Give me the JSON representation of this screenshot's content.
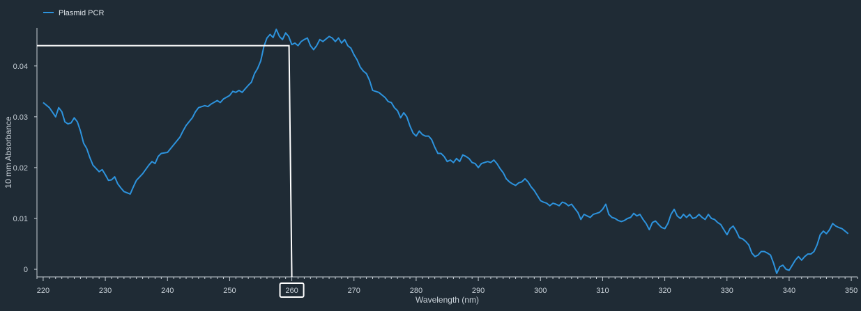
{
  "chart_data": {
    "type": "line",
    "xlabel": "Wavelength (nm)",
    "ylabel": "10 mm Absorbance",
    "xlim": [
      219,
      351
    ],
    "ylim": [
      -0.0015,
      0.0475
    ],
    "x_ticks": [
      220,
      230,
      240,
      250,
      260,
      270,
      280,
      290,
      300,
      310,
      320,
      330,
      340,
      350
    ],
    "y_ticks": [
      {
        "value": 0,
        "label": "0"
      },
      {
        "value": 0.01,
        "label": "0.01"
      },
      {
        "value": 0.02,
        "label": "0.02"
      },
      {
        "value": 0.03,
        "label": "0.03"
      },
      {
        "value": 0.04,
        "label": "0.04"
      }
    ],
    "grid": false,
    "legend_position": "top-left",
    "highlighted_tick": 260,
    "crosshair": {
      "x": 260,
      "y": 0.044
    },
    "series": [
      {
        "name": "Plasmid PCR",
        "color": "#2d93dd",
        "points": [
          [
            220,
            0.0328
          ],
          [
            221,
            0.0318
          ],
          [
            222,
            0.03
          ],
          [
            222.5,
            0.0318
          ],
          [
            223,
            0.031
          ],
          [
            223.5,
            0.029
          ],
          [
            224,
            0.0286
          ],
          [
            224.5,
            0.0288
          ],
          [
            225,
            0.0298
          ],
          [
            225.5,
            0.029
          ],
          [
            226,
            0.0272
          ],
          [
            226.5,
            0.0248
          ],
          [
            227,
            0.0238
          ],
          [
            227.5,
            0.022
          ],
          [
            228,
            0.0205
          ],
          [
            229,
            0.0192
          ],
          [
            229.5,
            0.0196
          ],
          [
            230,
            0.0186
          ],
          [
            230.5,
            0.0175
          ],
          [
            231,
            0.0176
          ],
          [
            231.5,
            0.0182
          ],
          [
            232,
            0.0168
          ],
          [
            232.5,
            0.016
          ],
          [
            233,
            0.0153
          ],
          [
            234,
            0.0148
          ],
          [
            234.5,
            0.0162
          ],
          [
            235,
            0.0175
          ],
          [
            236,
            0.0188
          ],
          [
            237,
            0.0205
          ],
          [
            237.5,
            0.0212
          ],
          [
            238,
            0.0208
          ],
          [
            238.5,
            0.0222
          ],
          [
            239,
            0.0228
          ],
          [
            240,
            0.023
          ],
          [
            241,
            0.0245
          ],
          [
            242,
            0.026
          ],
          [
            242.5,
            0.0272
          ],
          [
            243,
            0.0283
          ],
          [
            244,
            0.0298
          ],
          [
            244.5,
            0.031
          ],
          [
            245,
            0.0318
          ],
          [
            246,
            0.0322
          ],
          [
            246.5,
            0.032
          ],
          [
            247,
            0.0325
          ],
          [
            248,
            0.0332
          ],
          [
            248.5,
            0.0328
          ],
          [
            249,
            0.0335
          ],
          [
            250,
            0.0342
          ],
          [
            250.5,
            0.035
          ],
          [
            251,
            0.0348
          ],
          [
            251.5,
            0.0352
          ],
          [
            252,
            0.0348
          ],
          [
            252.5,
            0.0355
          ],
          [
            253,
            0.0362
          ],
          [
            253.5,
            0.0368
          ],
          [
            254,
            0.0385
          ],
          [
            254.5,
            0.0395
          ],
          [
            255,
            0.041
          ],
          [
            255.5,
            0.0438
          ],
          [
            256,
            0.0455
          ],
          [
            256.5,
            0.0462
          ],
          [
            257,
            0.0456
          ],
          [
            257.5,
            0.0472
          ],
          [
            258,
            0.0458
          ],
          [
            258.5,
            0.0452
          ],
          [
            259,
            0.0465
          ],
          [
            259.5,
            0.0458
          ],
          [
            260,
            0.0442
          ],
          [
            260.5,
            0.0445
          ],
          [
            261,
            0.044
          ],
          [
            261.5,
            0.0448
          ],
          [
            262,
            0.0452
          ],
          [
            262.5,
            0.0455
          ],
          [
            263,
            0.044
          ],
          [
            263.5,
            0.0432
          ],
          [
            264,
            0.044
          ],
          [
            264.5,
            0.0452
          ],
          [
            265,
            0.0448
          ],
          [
            266,
            0.0458
          ],
          [
            266.5,
            0.0455
          ],
          [
            267,
            0.0448
          ],
          [
            267.5,
            0.0455
          ],
          [
            268,
            0.0445
          ],
          [
            268.5,
            0.0452
          ],
          [
            269,
            0.044
          ],
          [
            269.5,
            0.0435
          ],
          [
            270,
            0.0422
          ],
          [
            270.5,
            0.0412
          ],
          [
            271,
            0.0398
          ],
          [
            271.5,
            0.039
          ],
          [
            272,
            0.0385
          ],
          [
            272.5,
            0.0372
          ],
          [
            273,
            0.0352
          ],
          [
            274,
            0.0348
          ],
          [
            275,
            0.0338
          ],
          [
            275.5,
            0.033
          ],
          [
            276,
            0.0328
          ],
          [
            276.5,
            0.0318
          ],
          [
            277,
            0.0312
          ],
          [
            277.5,
            0.0298
          ],
          [
            278,
            0.0308
          ],
          [
            278.5,
            0.03
          ],
          [
            279,
            0.0282
          ],
          [
            279.5,
            0.0268
          ],
          [
            280,
            0.0262
          ],
          [
            280.5,
            0.0272
          ],
          [
            281,
            0.0265
          ],
          [
            281.5,
            0.0262
          ],
          [
            282,
            0.0262
          ],
          [
            282.5,
            0.0255
          ],
          [
            283,
            0.024
          ],
          [
            283.5,
            0.0228
          ],
          [
            284,
            0.0228
          ],
          [
            284.5,
            0.0222
          ],
          [
            285,
            0.0212
          ],
          [
            285.5,
            0.0215
          ],
          [
            286,
            0.021
          ],
          [
            286.5,
            0.0218
          ],
          [
            287,
            0.0212
          ],
          [
            287.5,
            0.0225
          ],
          [
            288,
            0.0222
          ],
          [
            288.5,
            0.0218
          ],
          [
            289,
            0.021
          ],
          [
            289.5,
            0.0208
          ],
          [
            290,
            0.02
          ],
          [
            290.5,
            0.0208
          ],
          [
            291,
            0.021
          ],
          [
            291.5,
            0.0212
          ],
          [
            292,
            0.021
          ],
          [
            292.5,
            0.0215
          ],
          [
            293,
            0.0208
          ],
          [
            293.5,
            0.0198
          ],
          [
            294,
            0.019
          ],
          [
            294.5,
            0.0178
          ],
          [
            295,
            0.0172
          ],
          [
            295.5,
            0.0168
          ],
          [
            296,
            0.0165
          ],
          [
            296.5,
            0.017
          ],
          [
            297,
            0.0172
          ],
          [
            297.5,
            0.0178
          ],
          [
            298,
            0.0172
          ],
          [
            298.5,
            0.0162
          ],
          [
            299,
            0.0155
          ],
          [
            299.5,
            0.0145
          ],
          [
            300,
            0.0135
          ],
          [
            300.5,
            0.0132
          ],
          [
            301,
            0.013
          ],
          [
            301.5,
            0.0125
          ],
          [
            302,
            0.013
          ],
          [
            302.5,
            0.0128
          ],
          [
            303,
            0.0125
          ],
          [
            303.5,
            0.0132
          ],
          [
            304,
            0.013
          ],
          [
            304.5,
            0.0125
          ],
          [
            305,
            0.0128
          ],
          [
            305.5,
            0.012
          ],
          [
            306,
            0.0112
          ],
          [
            306.5,
            0.0098
          ],
          [
            307,
            0.0108
          ],
          [
            307.5,
            0.0105
          ],
          [
            308,
            0.0102
          ],
          [
            308.5,
            0.0108
          ],
          [
            309,
            0.011
          ],
          [
            309.5,
            0.0112
          ],
          [
            310,
            0.0118
          ],
          [
            310.5,
            0.0128
          ],
          [
            311,
            0.0108
          ],
          [
            311.5,
            0.0102
          ],
          [
            312,
            0.01
          ],
          [
            312.5,
            0.0096
          ],
          [
            313,
            0.0094
          ],
          [
            313.5,
            0.0096
          ],
          [
            314,
            0.01
          ],
          [
            314.5,
            0.0102
          ],
          [
            315,
            0.011
          ],
          [
            315.5,
            0.0105
          ],
          [
            316,
            0.0108
          ],
          [
            316.5,
            0.0098
          ],
          [
            317,
            0.009
          ],
          [
            317.5,
            0.0078
          ],
          [
            318,
            0.0092
          ],
          [
            318.5,
            0.0095
          ],
          [
            319,
            0.0088
          ],
          [
            319.5,
            0.0082
          ],
          [
            320,
            0.008
          ],
          [
            320.5,
            0.009
          ],
          [
            321,
            0.0108
          ],
          [
            321.5,
            0.0118
          ],
          [
            322,
            0.0105
          ],
          [
            322.5,
            0.01
          ],
          [
            323,
            0.0108
          ],
          [
            323.5,
            0.0102
          ],
          [
            324,
            0.0108
          ],
          [
            324.5,
            0.01
          ],
          [
            325,
            0.0102
          ],
          [
            325.5,
            0.0108
          ],
          [
            326,
            0.0102
          ],
          [
            326.5,
            0.0098
          ],
          [
            327,
            0.0108
          ],
          [
            327.5,
            0.01
          ],
          [
            328,
            0.0098
          ],
          [
            328.5,
            0.0092
          ],
          [
            329,
            0.0088
          ],
          [
            329.5,
            0.0078
          ],
          [
            330,
            0.0068
          ],
          [
            330.5,
            0.008
          ],
          [
            331,
            0.0085
          ],
          [
            331.5,
            0.0075
          ],
          [
            332,
            0.0062
          ],
          [
            332.5,
            0.006
          ],
          [
            333,
            0.0055
          ],
          [
            333.5,
            0.0048
          ],
          [
            334,
            0.0032
          ],
          [
            334.5,
            0.0025
          ],
          [
            335,
            0.0028
          ],
          [
            335.5,
            0.0035
          ],
          [
            336,
            0.0035
          ],
          [
            336.5,
            0.0032
          ],
          [
            337,
            0.0028
          ],
          [
            337.5,
            0.0012
          ],
          [
            338,
            -0.0008
          ],
          [
            338.5,
            0.0005
          ],
          [
            339,
            0.0008
          ],
          [
            339.5,
            0.0
          ],
          [
            340,
            -0.0002
          ],
          [
            340.5,
            0.0008
          ],
          [
            341,
            0.0018
          ],
          [
            341.5,
            0.0025
          ],
          [
            342,
            0.0018
          ],
          [
            342.5,
            0.0025
          ],
          [
            343,
            0.003
          ],
          [
            343.5,
            0.003
          ],
          [
            344,
            0.0035
          ],
          [
            344.5,
            0.0048
          ],
          [
            345,
            0.0068
          ],
          [
            345.5,
            0.0075
          ],
          [
            346,
            0.007
          ],
          [
            346.5,
            0.0078
          ],
          [
            347,
            0.009
          ],
          [
            347.5,
            0.0085
          ],
          [
            348,
            0.0082
          ],
          [
            348.5,
            0.008
          ],
          [
            349,
            0.0075
          ],
          [
            349.5,
            0.007
          ]
        ]
      }
    ]
  }
}
